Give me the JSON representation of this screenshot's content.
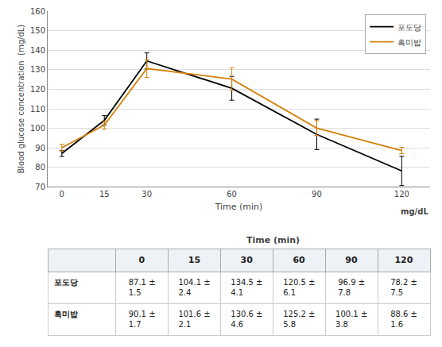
{
  "chart_data": {
    "type": "line",
    "x": [
      0,
      15,
      30,
      60,
      90,
      120
    ],
    "xlim": [
      -5,
      130
    ],
    "xticks": [
      0,
      15,
      30,
      60,
      90,
      120
    ],
    "ylim": [
      70,
      160
    ],
    "yticks": [
      70,
      80,
      90,
      100,
      110,
      120,
      130,
      140,
      150,
      160
    ],
    "xlabel": "Time (min)",
    "ylabel": "Blood glucose concentration  (mg/dL)",
    "grid": true,
    "legend": "upper right",
    "series": [
      {
        "name": "포도당",
        "color": "#000000",
        "values": [
          87.1,
          104.1,
          134.5,
          120.5,
          96.9,
          78.2
        ],
        "errors": [
          1.5,
          2.4,
          4.1,
          6.1,
          7.8,
          7.5
        ]
      },
      {
        "name": "흑미밥",
        "color": "#d4820a",
        "values": [
          90.1,
          101.6,
          130.6,
          125.2,
          100.1,
          88.6
        ],
        "errors": [
          1.7,
          2.1,
          4.6,
          5.8,
          3.8,
          1.6
        ]
      }
    ],
    "annotations": [
      {
        "text": "mg/dL"
      }
    ],
    "table": {
      "group_header": "Time (min)",
      "columns": [
        "0",
        "15",
        "30",
        "60",
        "90",
        "120"
      ],
      "rows": [
        {
          "label": "포도당",
          "values": [
            "87.1 ± 1.5",
            "104.1 ± 2.4",
            "134.5 ± 4.1",
            "120.5 ± 6.1",
            "96.9 ± 7.8",
            "78.2 ± 7.5"
          ]
        },
        {
          "label": "흑미밥",
          "values": [
            "90.1 ± 1.7",
            "101.6 ± 2.1",
            "130.6 ± 4.6",
            "125.2 ± 5.8",
            "100.1 ± 3.8",
            "88.6 ± 1.6"
          ]
        }
      ]
    }
  }
}
